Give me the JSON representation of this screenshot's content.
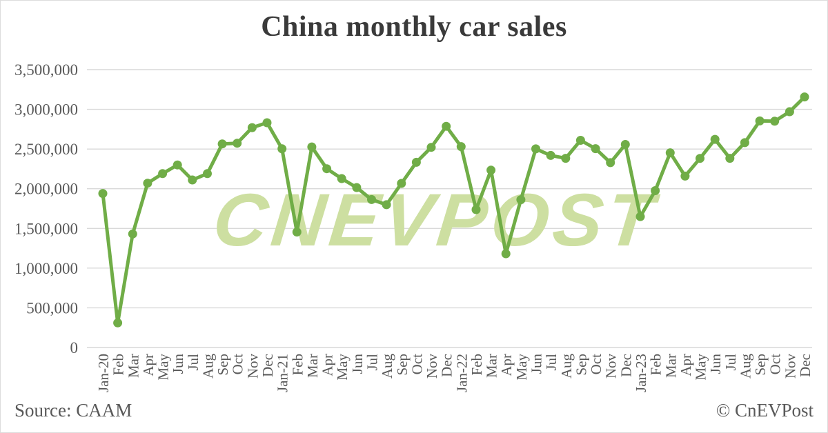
{
  "page": {
    "source_label": "Source: CAAM",
    "copyright_label": "© CnEVPost"
  },
  "watermark": {
    "text": "CNEVPOST",
    "color": "#cddfa1"
  },
  "chart_data": {
    "type": "line",
    "title": "China monthly car sales",
    "xlabel": "",
    "ylabel": "",
    "ylim": [
      0,
      3500000
    ],
    "y_tick_step": 500000,
    "y_tick_labels": [
      "0",
      "500,000",
      "1,000,000",
      "1,500,000",
      "2,000,000",
      "2,500,000",
      "3,000,000",
      "3,500,000"
    ],
    "grid": true,
    "legend": "none",
    "line_color": "#70ad47",
    "grid_color": "#d9d9d9",
    "tick_label_color": "#595959",
    "categories": [
      "Jan-20",
      "Feb",
      "Mar",
      "Apr",
      "May",
      "Jun",
      "Jul",
      "Aug",
      "Sep",
      "Oct",
      "Nov",
      "Dec",
      "Jan-21",
      "Feb",
      "Mar",
      "Apr",
      "May",
      "Jun",
      "Jul",
      "Aug",
      "Sep",
      "Oct",
      "Nov",
      "Dec",
      "Jan-22",
      "Feb",
      "Mar",
      "Apr",
      "May",
      "Jun",
      "Jul",
      "Aug",
      "Sep",
      "Oct",
      "Nov",
      "Dec",
      "Jan-23",
      "Feb",
      "Mar",
      "Apr",
      "May",
      "Jun",
      "Jul",
      "Aug",
      "Sep",
      "Oct",
      "Nov",
      "Dec"
    ],
    "values": [
      1940000,
      310000,
      1430000,
      2070000,
      2190000,
      2300000,
      2110000,
      2190000,
      2565000,
      2573000,
      2770000,
      2831000,
      2503000,
      1455000,
      2526000,
      2252000,
      2128000,
      2015000,
      1864000,
      1799000,
      2067000,
      2333000,
      2521000,
      2786000,
      2531000,
      1737000,
      2234000,
      1181000,
      1862000,
      2502000,
      2420000,
      2383000,
      2610000,
      2505000,
      2328000,
      2558000,
      1649000,
      1976000,
      2453000,
      2159000,
      2382000,
      2622000,
      2383000,
      2580000,
      2854000,
      2850000,
      2970000,
      3156000
    ]
  }
}
